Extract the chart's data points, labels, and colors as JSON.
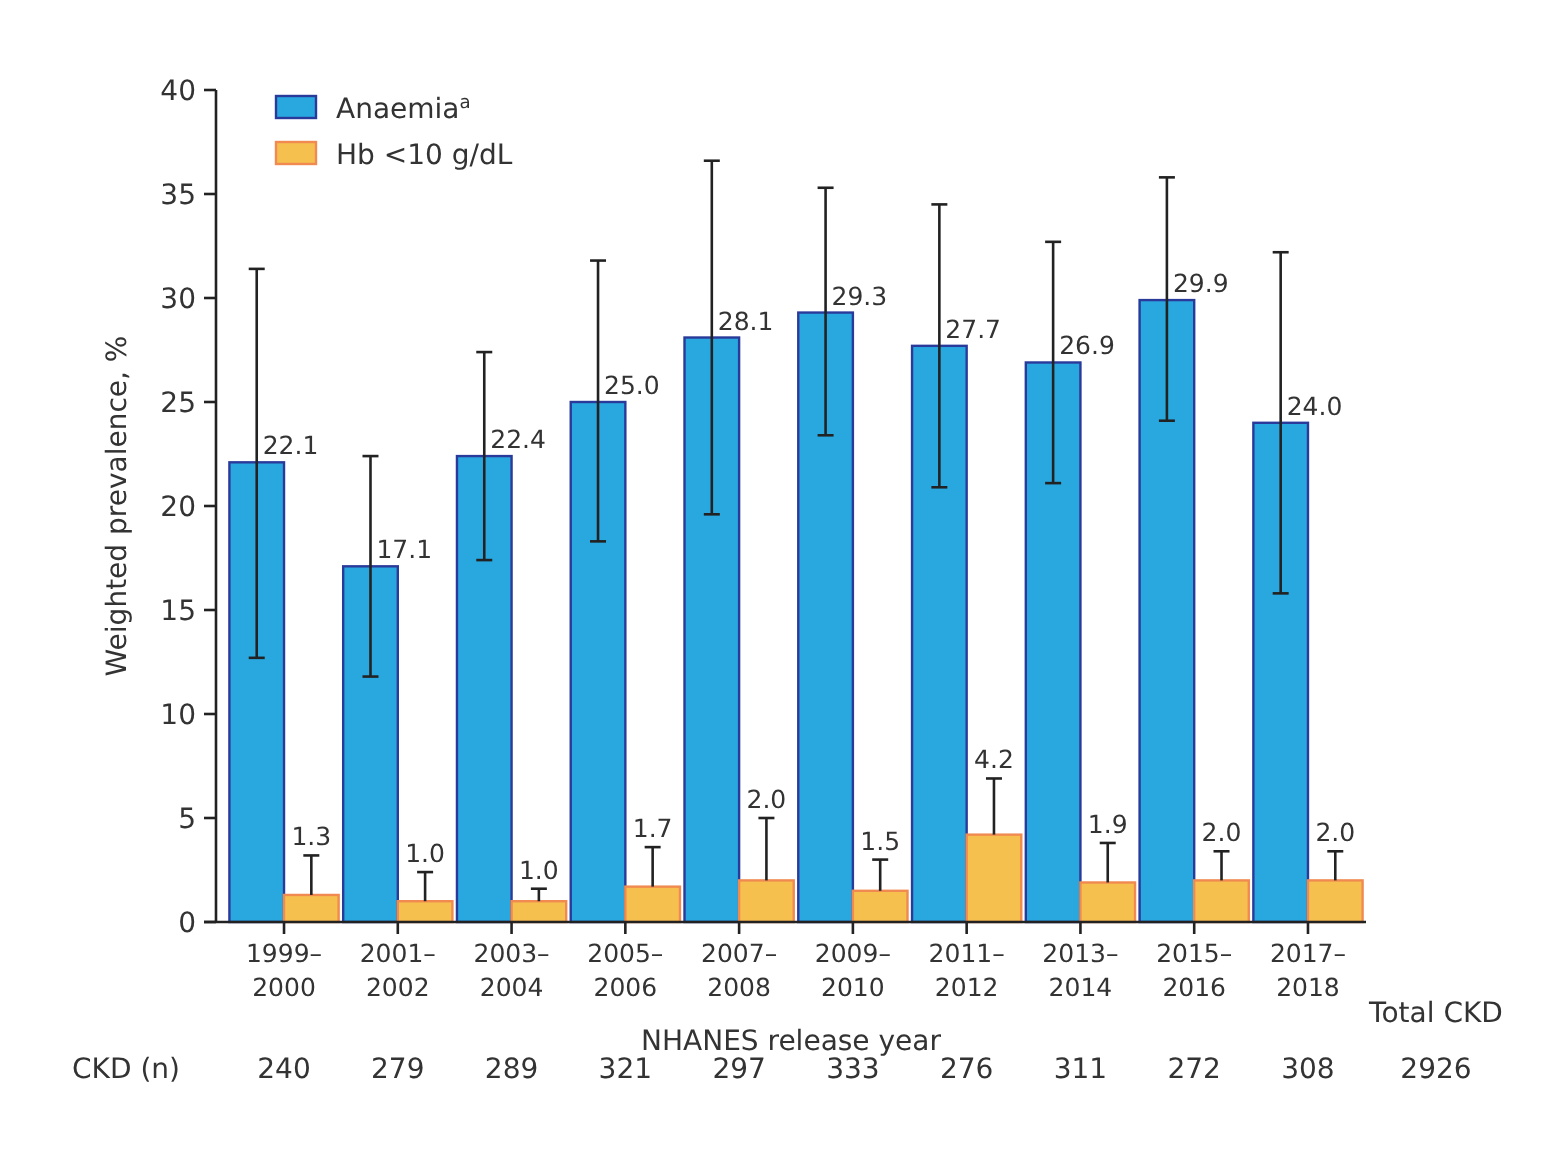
{
  "chart_data": {
    "type": "bar",
    "xlabel": "NHANES release year",
    "ylabel": "Weighted prevalence, %",
    "categories": [
      "1999–\n2000",
      "2001–\n2002",
      "2003–\n2004",
      "2005–\n2006",
      "2007–\n2008",
      "2009–\n2010",
      "2011–\n2012",
      "2013–\n2014",
      "2015–\n2016",
      "2017–\n2018"
    ],
    "series": [
      {
        "name": "Anaemia$^{a}$",
        "color": "#29a8e0",
        "values": [
          22.1,
          17.1,
          22.4,
          25.0,
          28.1,
          29.3,
          27.7,
          26.9,
          29.9,
          24.0
        ],
        "value_labels": [
          "22.1",
          "17.1",
          "22.4",
          "25.0",
          "28.1",
          "29.3",
          "27.7",
          "26.9",
          "29.9",
          "24.0"
        ],
        "errors": [
          [
            12.7,
            31.4
          ],
          [
            11.8,
            22.4
          ],
          [
            17.4,
            27.4
          ],
          [
            18.3,
            31.8
          ],
          [
            19.6,
            36.6
          ],
          [
            23.4,
            35.3
          ],
          [
            20.9,
            34.5
          ],
          [
            21.1,
            32.7
          ],
          [
            24.1,
            35.8
          ],
          [
            15.8,
            32.2
          ]
        ]
      },
      {
        "name": "Hb <10 g/dL",
        "color": "#f6c04f",
        "values": [
          1.3,
          1.0,
          1.0,
          1.7,
          2.0,
          1.5,
          4.2,
          1.9,
          2.0,
          2.0
        ],
        "value_labels": [
          "1.3",
          "1.0",
          "1.0",
          "1.7",
          "2.0",
          "1.5",
          "4.2",
          "1.9",
          "2.0",
          "2.0"
        ],
        "errors": [
          [
            1.3,
            3.2
          ],
          [
            1.0,
            2.4
          ],
          [
            1.0,
            1.6
          ],
          [
            1.7,
            3.6
          ],
          [
            2.0,
            5.0
          ],
          [
            1.5,
            3.0
          ],
          [
            4.2,
            6.9
          ],
          [
            1.9,
            3.8
          ],
          [
            2.0,
            3.4
          ],
          [
            2.0,
            3.4
          ]
        ]
      }
    ],
    "ylim": [
      0,
      40
    ],
    "yticks": [
      0,
      5,
      10,
      15,
      20,
      25,
      30,
      35,
      40
    ],
    "grid": false,
    "legend": "top left",
    "annotations": [
      "Total CKD",
      "CKD (n)",
      "240",
      "279",
      "289",
      "321",
      "297",
      "333",
      "276",
      "311",
      "272",
      "308",
      "2926"
    ]
  }
}
